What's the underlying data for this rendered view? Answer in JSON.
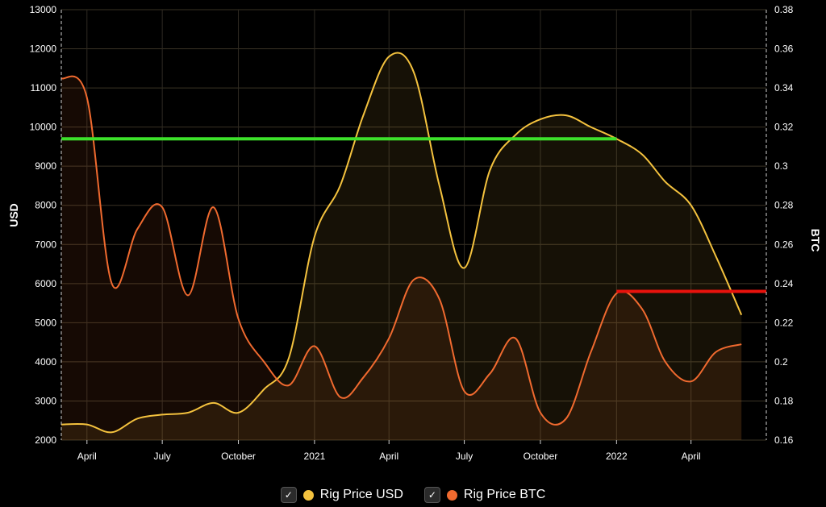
{
  "chart_data": {
    "type": "line",
    "x_ticks": [
      "April",
      "July",
      "October",
      "2021",
      "April",
      "July",
      "October",
      "2022",
      "April"
    ],
    "y_left": {
      "label": "USD",
      "range": [
        2000,
        13000
      ],
      "ticks": [
        "2000",
        "3000",
        "4000",
        "5000",
        "6000",
        "7000",
        "8000",
        "9000",
        "10000",
        "11000",
        "12000",
        "13000"
      ]
    },
    "y_right": {
      "label": "BTC",
      "range": [
        0.16,
        0.38
      ],
      "ticks": [
        "0.16",
        "0.18",
        "0.2",
        "0.22",
        "0.24",
        "0.26",
        "0.28",
        "0.3",
        "0.32",
        "0.34",
        "0.36",
        "0.38"
      ]
    },
    "series": [
      {
        "name": "Rig Price USD",
        "axis": "left",
        "color": "#f4c23e",
        "x": [
          "2020-03-01",
          "2020-04-01",
          "2020-05-01",
          "2020-06-01",
          "2020-07-01",
          "2020-08-01",
          "2020-09-01",
          "2020-10-01",
          "2020-11-01",
          "2020-12-01",
          "2021-01-01",
          "2021-02-01",
          "2021-03-01",
          "2021-04-01",
          "2021-05-01",
          "2021-06-01",
          "2021-07-01",
          "2021-08-01",
          "2021-09-01",
          "2021-10-01",
          "2021-11-01",
          "2021-12-01",
          "2022-01-01",
          "2022-02-01",
          "2022-03-01",
          "2022-04-01",
          "2022-05-01",
          "2022-06-01"
        ],
        "values": [
          2400,
          2400,
          2200,
          2550,
          2650,
          2700,
          2950,
          2700,
          3300,
          4100,
          7200,
          8500,
          10300,
          11800,
          11400,
          8500,
          6400,
          8900,
          9800,
          10200,
          10300,
          10000,
          9700,
          9300,
          8600,
          8000,
          6700,
          5200
        ]
      },
      {
        "name": "Rig Price BTC",
        "axis": "right",
        "color": "#f06a2f",
        "x": [
          "2020-03-01",
          "2020-04-01",
          "2020-05-01",
          "2020-06-01",
          "2020-07-01",
          "2020-08-01",
          "2020-09-01",
          "2020-10-01",
          "2020-11-01",
          "2020-12-01",
          "2021-01-01",
          "2021-02-01",
          "2021-03-01",
          "2021-04-01",
          "2021-05-01",
          "2021-06-01",
          "2021-07-01",
          "2021-08-01",
          "2021-09-01",
          "2021-10-01",
          "2021-11-01",
          "2021-12-01",
          "2022-01-01",
          "2022-02-01",
          "2022-03-01",
          "2022-04-01",
          "2022-05-01",
          "2022-06-01"
        ],
        "values": [
          0.345,
          0.335,
          0.24,
          0.268,
          0.279,
          0.234,
          0.279,
          0.222,
          0.2,
          0.188,
          0.208,
          0.182,
          0.192,
          0.212,
          0.242,
          0.232,
          0.185,
          0.194,
          0.212,
          0.174,
          0.171,
          0.205,
          0.235,
          0.227,
          0.2,
          0.19,
          0.205,
          0.209
        ]
      }
    ],
    "reference_lines": [
      {
        "axis": "left",
        "value": 9700,
        "x_start": "2020-03-01",
        "x_end": "2022-01-01",
        "color": "#3de12b"
      },
      {
        "axis": "right",
        "value": 0.236,
        "x_start": "2022-01-01",
        "x_end": "2022-07-01",
        "color": "#e8120c"
      }
    ],
    "x_range": [
      "2020-03-01",
      "2022-07-01"
    ],
    "grid": true,
    "legend_position": "bottom-center"
  }
}
